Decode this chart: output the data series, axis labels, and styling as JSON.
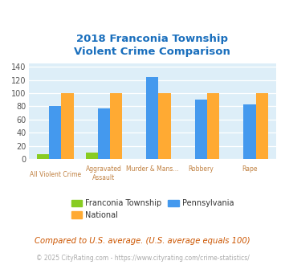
{
  "title_line1": "2018 Franconia Township",
  "title_line2": "Violent Crime Comparison",
  "title_color": "#1a6fbd",
  "categories_top": [
    "",
    "Aggravated Assault",
    "Murder & Mans...",
    "Robbery",
    "Rape"
  ],
  "categories_bot": [
    "All Violent Crime",
    "",
    "",
    "",
    ""
  ],
  "cat_label_color": "#c08040",
  "series_order": [
    "Franconia Township",
    "Pennsylvania",
    "National"
  ],
  "series": {
    "Franconia Township": {
      "values": [
        7,
        10,
        0,
        0,
        0
      ],
      "color": "#88cc22"
    },
    "Pennsylvania": {
      "values": [
        81,
        77,
        124,
        90,
        83
      ],
      "color": "#4499ee"
    },
    "National": {
      "values": [
        100,
        100,
        100,
        100,
        100
      ],
      "color": "#ffaa33"
    }
  },
  "ylim": [
    0,
    145
  ],
  "yticks": [
    0,
    20,
    40,
    60,
    80,
    100,
    120,
    140
  ],
  "legend_labels": [
    "Franconia Township",
    "National",
    "Pennsylvania"
  ],
  "legend_colors": [
    "#88cc22",
    "#ffaa33",
    "#4499ee"
  ],
  "footnote1": "Compared to U.S. average. (U.S. average equals 100)",
  "footnote2": "© 2025 CityRating.com - https://www.cityrating.com/crime-statistics/",
  "footnote1_color": "#cc5500",
  "footnote2_color": "#aaaaaa",
  "bg_color": "#ddeef8",
  "fig_bg": "#ffffff",
  "bar_width": 0.25
}
